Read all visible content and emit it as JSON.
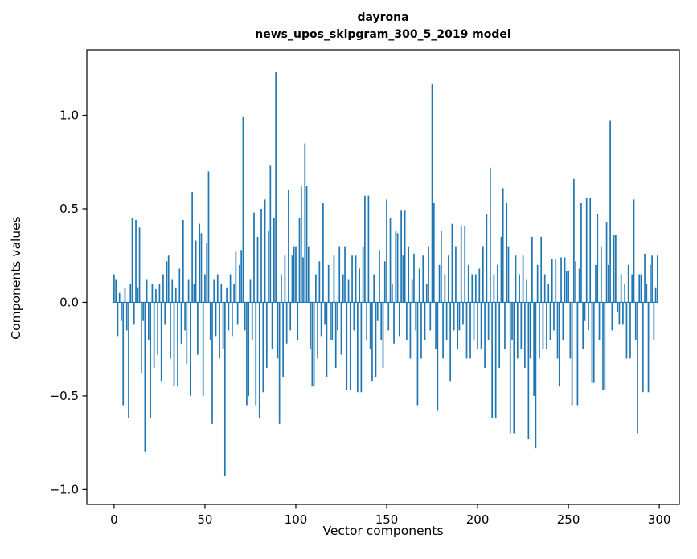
{
  "figure": {
    "title_line1": "dayrona",
    "title_line2": "news_upos_skipgram_300_5_2019 model",
    "xlabel": "Vector components",
    "ylabel": "Components values",
    "background_color": "#ffffff",
    "bar_color": "#1f77b4",
    "axis_color": "#000000"
  },
  "chart_data": {
    "type": "bar",
    "title": "dayrona\nnews_upos_skipgram_300_5_2019 model",
    "xlabel": "Vector components",
    "ylabel": "Components values",
    "legend": "none",
    "grid": false,
    "xlim": [
      -15,
      311
    ],
    "ylim": [
      -1.08,
      1.35
    ],
    "x_ticks": [
      0,
      50,
      100,
      150,
      200,
      250,
      300
    ],
    "x_tick_labels": [
      "0",
      "50",
      "100",
      "150",
      "200",
      "250",
      "300"
    ],
    "y_ticks": [
      -1.0,
      -0.5,
      0.0,
      0.5,
      1.0
    ],
    "y_tick_labels": [
      "−1.0",
      "−0.5",
      "0.0",
      "0.5",
      "1.0"
    ],
    "n_components": 300,
    "values": [
      0.15,
      0.12,
      -0.18,
      0.05,
      -0.1,
      -0.55,
      0.08,
      -0.15,
      -0.62,
      0.1,
      0.45,
      -0.12,
      0.44,
      0.08,
      0.4,
      -0.38,
      -0.1,
      -0.8,
      0.12,
      -0.2,
      -0.62,
      0.1,
      -0.35,
      0.07,
      -0.28,
      0.1,
      -0.42,
      0.15,
      -0.12,
      0.22,
      0.25,
      -0.3,
      0.12,
      -0.45,
      0.08,
      -0.45,
      0.18,
      -0.22,
      0.44,
      -0.15,
      -0.33,
      0.12,
      -0.5,
      0.59,
      0.1,
      0.33,
      -0.28,
      0.42,
      0.37,
      -0.5,
      0.15,
      0.32,
      0.7,
      -0.2,
      -0.65,
      0.12,
      -0.18,
      0.15,
      -0.3,
      0.1,
      -0.25,
      -0.93,
      0.08,
      -0.15,
      0.15,
      -0.18,
      0.1,
      0.27,
      -0.12,
      0.2,
      0.28,
      0.99,
      -0.15,
      -0.55,
      -0.5,
      0.12,
      -0.2,
      0.48,
      -0.55,
      0.35,
      -0.62,
      0.5,
      -0.48,
      0.55,
      -0.35,
      0.38,
      0.73,
      -0.25,
      0.45,
      1.23,
      -0.3,
      -0.65,
      0.15,
      -0.4,
      0.25,
      -0.22,
      0.6,
      -0.15,
      0.25,
      0.3,
      0.3,
      -0.2,
      0.45,
      0.62,
      0.24,
      0.85,
      0.62,
      0.3,
      -0.25,
      -0.45,
      -0.45,
      0.15,
      -0.3,
      0.22,
      -0.18,
      0.53,
      -0.12,
      -0.4,
      0.2,
      -0.2,
      -0.2,
      0.25,
      -0.35,
      -0.15,
      0.3,
      -0.28,
      0.15,
      0.3,
      -0.47,
      0.12,
      -0.47,
      0.25,
      -0.15,
      0.25,
      -0.48,
      0.18,
      -0.48,
      0.3,
      0.57,
      -0.2,
      0.57,
      -0.25,
      -0.42,
      0.15,
      -0.4,
      -0.1,
      0.28,
      -0.2,
      -0.35,
      0.22,
      0.55,
      -0.15,
      0.45,
      0.1,
      -0.22,
      0.38,
      0.37,
      -0.18,
      0.49,
      0.25,
      0.49,
      -0.2,
      0.3,
      -0.3,
      0.12,
      0.26,
      -0.15,
      -0.55,
      0.18,
      -0.3,
      0.25,
      -0.2,
      0.1,
      0.3,
      -0.15,
      1.17,
      0.53,
      -0.25,
      -0.58,
      0.2,
      0.38,
      -0.3,
      0.15,
      -0.2,
      0.25,
      -0.42,
      0.42,
      -0.15,
      0.3,
      -0.25,
      -0.15,
      0.41,
      -0.12,
      0.41,
      -0.3,
      0.2,
      -0.3,
      0.15,
      -0.2,
      0.15,
      -0.25,
      0.18,
      -0.25,
      0.3,
      -0.35,
      0.47,
      -0.2,
      0.72,
      -0.62,
      0.15,
      -0.62,
      0.2,
      -0.35,
      0.35,
      0.61,
      -0.25,
      0.53,
      0.3,
      -0.7,
      -0.2,
      -0.7,
      0.25,
      -0.3,
      0.15,
      -0.25,
      0.25,
      -0.35,
      0.12,
      -0.73,
      -0.3,
      0.35,
      -0.5,
      -0.78,
      0.2,
      -0.3,
      0.35,
      -0.25,
      0.15,
      -0.25,
      0.1,
      -0.2,
      0.23,
      -0.15,
      0.23,
      -0.3,
      -0.45,
      0.24,
      -0.2,
      0.24,
      0.17,
      0.17,
      -0.3,
      -0.55,
      0.66,
      0.22,
      -0.55,
      0.18,
      0.53,
      -0.25,
      -0.1,
      0.56,
      -0.15,
      0.56,
      -0.43,
      -0.43,
      0.2,
      0.47,
      -0.2,
      0.3,
      -0.47,
      -0.47,
      0.43,
      0.2,
      0.97,
      -0.15,
      0.36,
      0.36,
      -0.05,
      -0.12,
      0.15,
      -0.12,
      0.1,
      -0.3,
      0.2,
      -0.3,
      0.15,
      0.55,
      -0.2,
      -0.7,
      0.15,
      0.15,
      -0.48,
      0.26,
      0.1,
      -0.48,
      0.2,
      0.25,
      -0.2,
      0.08,
      0.25
    ]
  }
}
